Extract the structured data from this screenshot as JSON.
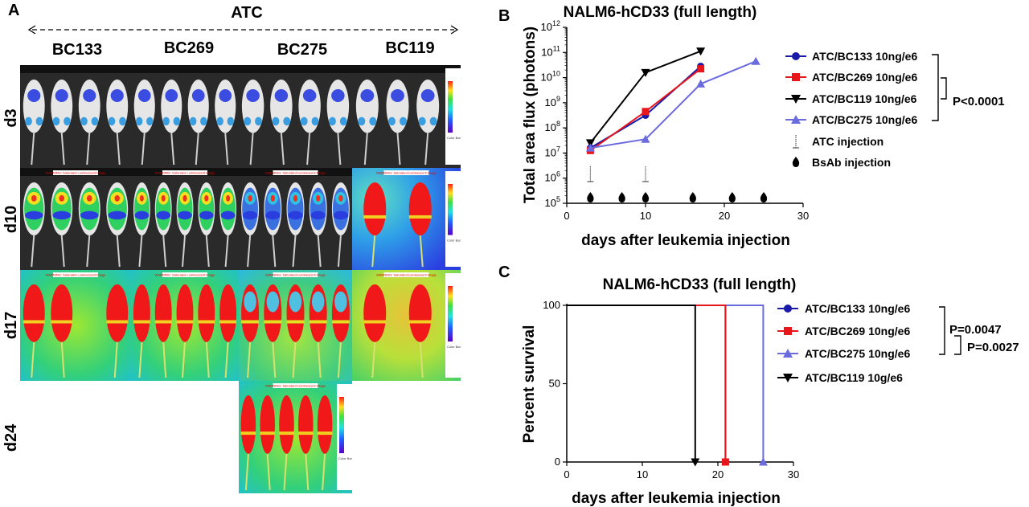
{
  "panel_a": {
    "label": "A",
    "group": "ATC",
    "columns": [
      "BC133",
      "BC269",
      "BC275",
      "BC119"
    ],
    "rows": [
      "d3",
      "d10",
      "d17",
      "d24"
    ],
    "warning_text": "WARNING: Saturated Luminescent Image",
    "colorbar_text": "Color Bar"
  },
  "chart_data": [
    {
      "id": "B",
      "label": "B",
      "type": "line",
      "title": "NALM6-hCD33 (full length)",
      "xlabel": "days after leukemia injection",
      "ylabel": "Total area flux (photons)",
      "xlim": [
        0,
        30
      ],
      "xticks": [
        0,
        10,
        20,
        30
      ],
      "ylim_exp": [
        5,
        12
      ],
      "ylog": true,
      "ytick_labels": [
        "10^5",
        "10^6",
        "10^7",
        "10^8",
        "10^9",
        "10^10",
        "10^11",
        "10^12"
      ],
      "series": [
        {
          "name": "ATC/BC133 10ng/e6",
          "color": "#1a1aa8",
          "marker": "circle",
          "x": [
            3,
            10,
            17
          ],
          "y_exp": [
            7.2,
            8.5,
            10.45
          ]
        },
        {
          "name": "ATC/BC269 10ng/e6",
          "color": "#e8151b",
          "marker": "square",
          "x": [
            3,
            10,
            17
          ],
          "y_exp": [
            7.1,
            8.65,
            10.35
          ]
        },
        {
          "name": "ATC/BC119 10ng/e6",
          "color": "#000000",
          "marker": "triangle-down",
          "x": [
            3,
            10,
            17
          ],
          "y_exp": [
            7.4,
            10.2,
            11.05
          ]
        },
        {
          "name": "ATC/BC275 10ng/e6",
          "color": "#6b6be0",
          "marker": "triangle-up",
          "x": [
            3,
            10,
            17,
            24
          ],
          "y_exp": [
            7.2,
            7.55,
            9.75,
            10.65
          ]
        }
      ],
      "atc_injection_days": [
        3,
        10
      ],
      "bsab_injection_days": [
        3,
        7,
        10,
        16,
        21,
        25
      ],
      "atc_injection_label": "ATC injection",
      "bsab_injection_label": "BsAb injection",
      "pvalue": "P<0.0001"
    },
    {
      "id": "C",
      "label": "C",
      "type": "line",
      "title": "NALM6-hCD33 (full length)",
      "xlabel": "days after leukemia injection",
      "ylabel": "Percent survival",
      "xlim": [
        0,
        30
      ],
      "xticks": [
        0,
        10,
        20,
        30
      ],
      "ylim": [
        0,
        100
      ],
      "yticks": [
        0,
        50,
        100
      ],
      "series": [
        {
          "name": "ATC/BC133 10ng/e6",
          "color": "#1a1aa8",
          "marker": "circle",
          "x": [
            0,
            21,
            21
          ],
          "y": [
            100,
            100,
            0
          ]
        },
        {
          "name": "ATC/BC269 10ng/e6",
          "color": "#e8151b",
          "marker": "square",
          "x": [
            0,
            21,
            21
          ],
          "y": [
            100,
            100,
            0
          ]
        },
        {
          "name": "ATC/BC275 10ng/e6",
          "color": "#6b6be0",
          "marker": "triangle-up",
          "x": [
            0,
            26,
            26
          ],
          "y": [
            100,
            100,
            0
          ]
        },
        {
          "name": "ATC/BC119 10g/e6",
          "color": "#000000",
          "marker": "triangle-down",
          "x": [
            0,
            17,
            17
          ],
          "y": [
            100,
            100,
            0
          ]
        }
      ],
      "pvalues": [
        "P=0.0047",
        "P=0.0027"
      ]
    }
  ]
}
